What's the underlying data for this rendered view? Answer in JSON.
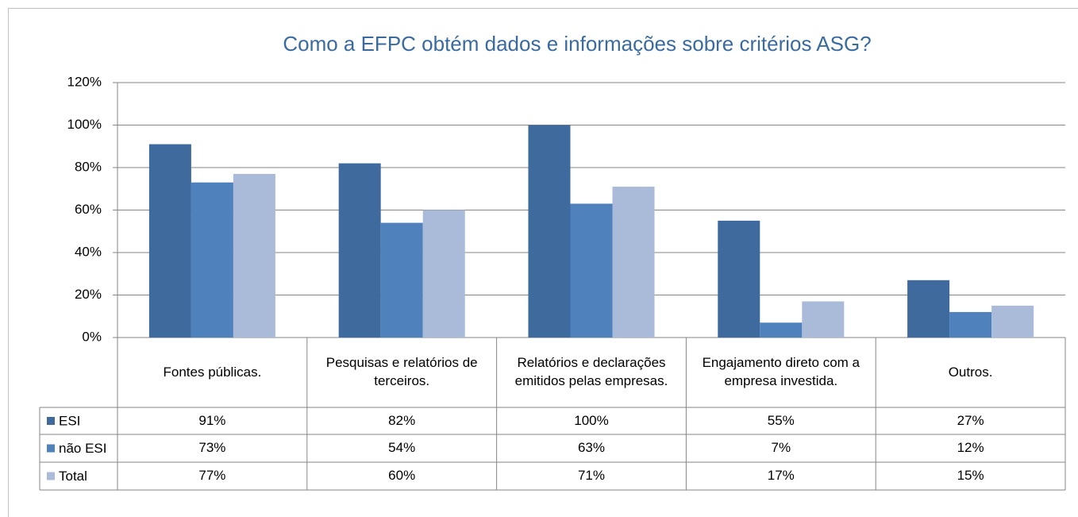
{
  "chart_data": {
    "type": "bar",
    "title": "Como a EFPC obtém dados e informações sobre critérios ASG?",
    "categories": [
      "Fontes públicas.",
      "Pesquisas e relatórios de terceiros.",
      "Relatórios e declarações emitidos pelas empresas.",
      "Engajamento direto com a empresa investida.",
      "Outros."
    ],
    "series": [
      {
        "name": "ESI",
        "color": "#3e6a9e",
        "values": [
          91,
          82,
          100,
          55,
          27
        ],
        "value_labels": [
          "91%",
          "82%",
          "100%",
          "55%",
          "27%"
        ]
      },
      {
        "name": "não ESI",
        "color": "#4f81bd",
        "values": [
          73,
          54,
          63,
          7,
          12
        ],
        "value_labels": [
          "73%",
          "54%",
          "63%",
          "7%",
          "12%"
        ]
      },
      {
        "name": "Total",
        "color": "#a9bbd9",
        "values": [
          77,
          60,
          71,
          17,
          15
        ],
        "value_labels": [
          "77%",
          "60%",
          "71%",
          "17%",
          "15%"
        ]
      }
    ],
    "ylim": [
      0,
      120
    ],
    "yticks": [
      {
        "value": 0,
        "label": "0%"
      },
      {
        "value": 20,
        "label": "20%"
      },
      {
        "value": 40,
        "label": "40%"
      },
      {
        "value": 60,
        "label": "60%"
      },
      {
        "value": 80,
        "label": "80%"
      },
      {
        "value": 100,
        "label": "100%"
      },
      {
        "value": 120,
        "label": "120%"
      }
    ],
    "grid": true
  }
}
